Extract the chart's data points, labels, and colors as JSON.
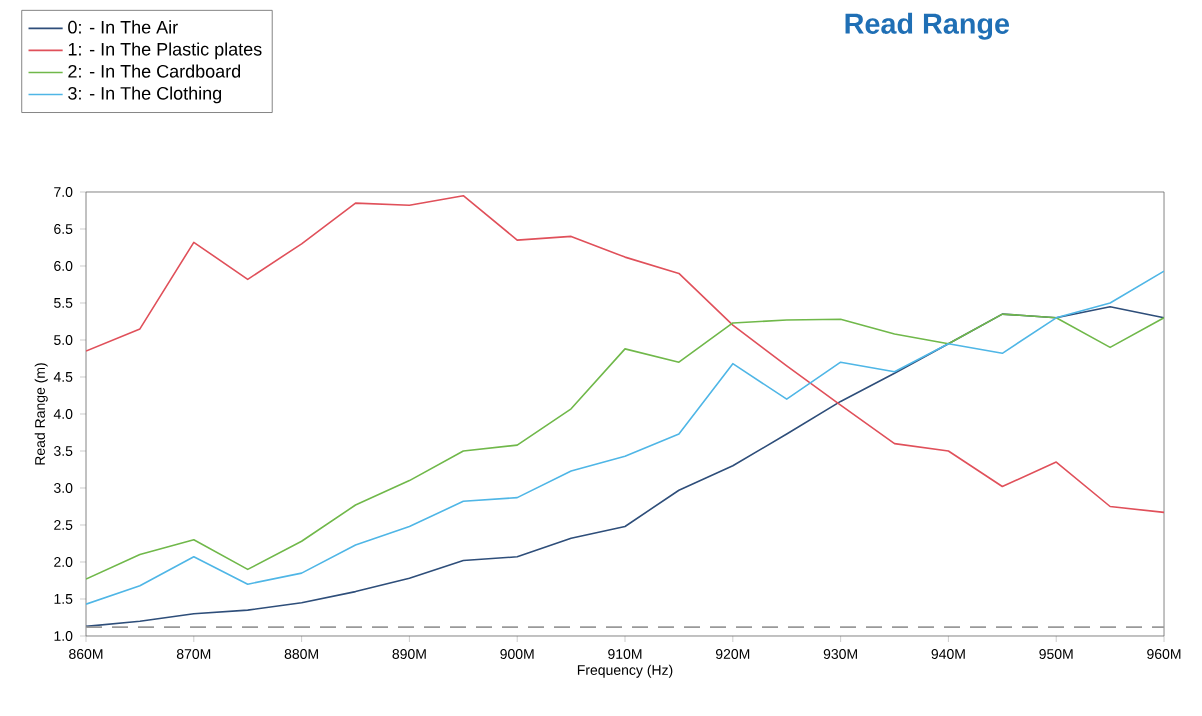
{
  "chart_data": {
    "type": "line",
    "title": "Read Range",
    "xlabel": "Frequency (Hz)",
    "ylabel": "Read Range (m)",
    "x": [
      860,
      865,
      870,
      875,
      880,
      885,
      890,
      895,
      900,
      905,
      910,
      915,
      920,
      925,
      930,
      935,
      940,
      945,
      950,
      955,
      960
    ],
    "series": [
      {
        "name": "0: - In The Air",
        "color": "#2e4e7a",
        "values": [
          1.13,
          1.2,
          1.3,
          1.35,
          1.45,
          1.6,
          1.78,
          2.02,
          2.07,
          2.32,
          2.48,
          2.97,
          3.3,
          3.73,
          4.17,
          4.55,
          4.95,
          5.35,
          5.3,
          5.45,
          5.3
        ]
      },
      {
        "name": "1: - In The Plastic plates",
        "color": "#e0505a",
        "values": [
          4.85,
          5.15,
          6.32,
          5.82,
          6.3,
          6.85,
          6.82,
          6.95,
          6.35,
          6.4,
          6.12,
          5.9,
          5.2,
          4.65,
          4.12,
          3.6,
          3.5,
          3.02,
          3.35,
          2.75,
          2.67
        ]
      },
      {
        "name": "2: - In The Cardboard",
        "color": "#70b84a",
        "values": [
          1.77,
          2.1,
          2.3,
          1.9,
          2.28,
          2.77,
          3.1,
          3.5,
          3.58,
          4.07,
          4.88,
          4.7,
          5.23,
          5.27,
          5.28,
          5.08,
          4.95,
          5.35,
          5.3,
          4.9,
          5.3
        ]
      },
      {
        "name": "3: - In The Clothing",
        "color": "#4fb6e6",
        "values": [
          1.43,
          1.68,
          2.07,
          1.7,
          1.85,
          2.23,
          2.48,
          2.82,
          2.87,
          3.23,
          3.43,
          3.73,
          4.68,
          4.2,
          4.7,
          4.57,
          4.95,
          4.82,
          5.3,
          5.5,
          5.93
        ]
      }
    ],
    "xlim": [
      860,
      960
    ],
    "xticks": [
      {
        "value": 860,
        "label": "860M"
      },
      {
        "value": 870,
        "label": "870M"
      },
      {
        "value": 880,
        "label": "880M"
      },
      {
        "value": 890,
        "label": "890M"
      },
      {
        "value": 900,
        "label": "900M"
      },
      {
        "value": 910,
        "label": "910M"
      },
      {
        "value": 920,
        "label": "920M"
      },
      {
        "value": 930,
        "label": "930M"
      },
      {
        "value": 940,
        "label": "940M"
      },
      {
        "value": 950,
        "label": "950M"
      },
      {
        "value": 960,
        "label": "960M"
      }
    ],
    "ylim": [
      1.0,
      7.0
    ],
    "yticks": [
      {
        "value": 1.0,
        "label": "1.0"
      },
      {
        "value": 1.5,
        "label": "1.5"
      },
      {
        "value": 2.0,
        "label": "2.0"
      },
      {
        "value": 2.5,
        "label": "2.5"
      },
      {
        "value": 3.0,
        "label": "3.0"
      },
      {
        "value": 3.5,
        "label": "3.5"
      },
      {
        "value": 4.0,
        "label": "4.0"
      },
      {
        "value": 4.5,
        "label": "4.5"
      },
      {
        "value": 5.0,
        "label": "5.0"
      },
      {
        "value": 5.5,
        "label": "5.5"
      },
      {
        "value": 6.0,
        "label": "6.0"
      },
      {
        "value": 6.5,
        "label": "6.5"
      },
      {
        "value": 7.0,
        "label": "7.0"
      }
    ],
    "ref_lines": [
      {
        "axis": "y",
        "value": 1.12,
        "color": "#999999",
        "line_style": "dashed"
      }
    ],
    "grid": false,
    "legend": "top left",
    "marker": "none",
    "line_style": "solid"
  }
}
